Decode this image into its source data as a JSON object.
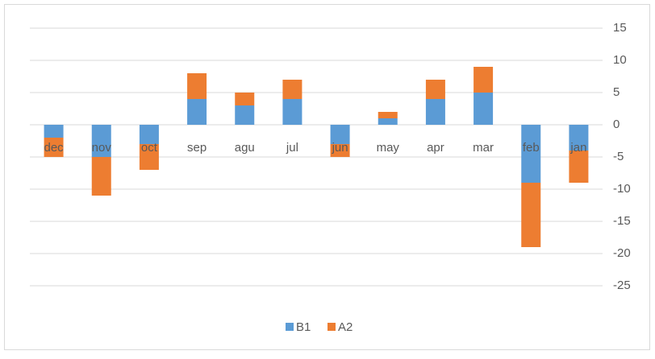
{
  "chart_data": {
    "type": "stacked_bar",
    "categories": [
      "dec",
      "nov",
      "oct",
      "sep",
      "agu",
      "jul",
      "jun",
      "may",
      "apr",
      "mar",
      "feb",
      "jan"
    ],
    "series": [
      {
        "name": "B1",
        "color": "#5b9bd5",
        "values": [
          -2,
          -5,
          -3,
          4,
          3,
          4,
          -3,
          1,
          4,
          5,
          -9,
          -4
        ]
      },
      {
        "name": "A2",
        "color": "#ed7d31",
        "values": [
          -3,
          -6,
          -4,
          4,
          2,
          3,
          -2,
          1,
          3,
          4,
          -10,
          -5
        ]
      }
    ],
    "ylim": [
      -25,
      15
    ],
    "yticks": [
      -25,
      -20,
      -15,
      -10,
      -5,
      0,
      5,
      10,
      15
    ],
    "grid": true,
    "legend": "bottom"
  }
}
